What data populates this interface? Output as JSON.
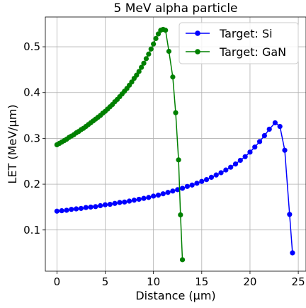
{
  "chart_data": {
    "type": "line",
    "title": "5 MeV alpha particle",
    "xlabel": "Distance (µm)",
    "ylabel": "LET (MeV/µm)",
    "xlim": [
      -1.2,
      25.8
    ],
    "ylim": [
      0.01,
      0.565
    ],
    "xticks": [
      0,
      5,
      10,
      15,
      20,
      25
    ],
    "xtick_labels": [
      "0",
      "5",
      "10",
      "15",
      "20",
      "25"
    ],
    "yticks": [
      0.1,
      0.2,
      0.3,
      0.4,
      0.5
    ],
    "ytick_labels": [
      "0.1",
      "0.2",
      "0.3",
      "0.4",
      "0.5"
    ],
    "grid": true,
    "legend": "top-right",
    "series": [
      {
        "name": "Target: Si",
        "color": "#0000ff",
        "x": [
          0,
          0.5,
          1.0,
          1.5,
          2.0,
          2.5,
          3.0,
          3.5,
          4.0,
          4.5,
          5.0,
          5.5,
          6.0,
          6.5,
          7.0,
          7.5,
          8.0,
          8.5,
          9.0,
          9.5,
          10.0,
          10.5,
          11.0,
          11.5,
          12.0,
          12.5,
          13.0,
          13.5,
          14.0,
          14.5,
          15.0,
          15.5,
          16.0,
          16.5,
          17.0,
          17.5,
          18.0,
          18.5,
          19.0,
          19.5,
          20.0,
          20.5,
          21.0,
          21.5,
          22.0,
          22.6,
          23.1,
          23.6,
          24.1,
          24.4
        ],
        "y": [
          0.141,
          0.142,
          0.143,
          0.145,
          0.146,
          0.147,
          0.149,
          0.15,
          0.151,
          0.153,
          0.155,
          0.156,
          0.158,
          0.16,
          0.161,
          0.163,
          0.165,
          0.167,
          0.169,
          0.171,
          0.174,
          0.176,
          0.179,
          0.182,
          0.185,
          0.188,
          0.191,
          0.195,
          0.198,
          0.202,
          0.206,
          0.21,
          0.215,
          0.22,
          0.225,
          0.231,
          0.237,
          0.244,
          0.252,
          0.26,
          0.27,
          0.281,
          0.293,
          0.306,
          0.32,
          0.334,
          0.326,
          0.274,
          0.134,
          0.05
        ]
      },
      {
        "name": "Target: GaN",
        "color": "#008000",
        "x": [
          0,
          0.25,
          0.5,
          0.75,
          1.0,
          1.25,
          1.5,
          1.75,
          2.0,
          2.25,
          2.5,
          2.75,
          3.0,
          3.25,
          3.5,
          3.75,
          4.0,
          4.25,
          4.5,
          4.75,
          5.0,
          5.25,
          5.5,
          5.75,
          6.0,
          6.25,
          6.5,
          6.75,
          7.0,
          7.25,
          7.5,
          7.75,
          8.0,
          8.25,
          8.5,
          8.75,
          9.0,
          9.25,
          9.5,
          9.75,
          10.0,
          10.25,
          10.5,
          10.75,
          11.0,
          11.25,
          11.6,
          12.0,
          12.3,
          12.6,
          12.8,
          13.0
        ],
        "y": [
          0.286,
          0.289,
          0.292,
          0.295,
          0.298,
          0.302,
          0.305,
          0.308,
          0.312,
          0.315,
          0.319,
          0.322,
          0.326,
          0.33,
          0.334,
          0.338,
          0.342,
          0.346,
          0.35,
          0.355,
          0.359,
          0.364,
          0.369,
          0.374,
          0.38,
          0.385,
          0.391,
          0.397,
          0.403,
          0.409,
          0.416,
          0.423,
          0.431,
          0.438,
          0.446,
          0.455,
          0.464,
          0.474,
          0.484,
          0.495,
          0.506,
          0.518,
          0.528,
          0.536,
          0.538,
          0.536,
          0.49,
          0.434,
          0.356,
          0.253,
          0.133,
          0.035
        ]
      }
    ]
  }
}
